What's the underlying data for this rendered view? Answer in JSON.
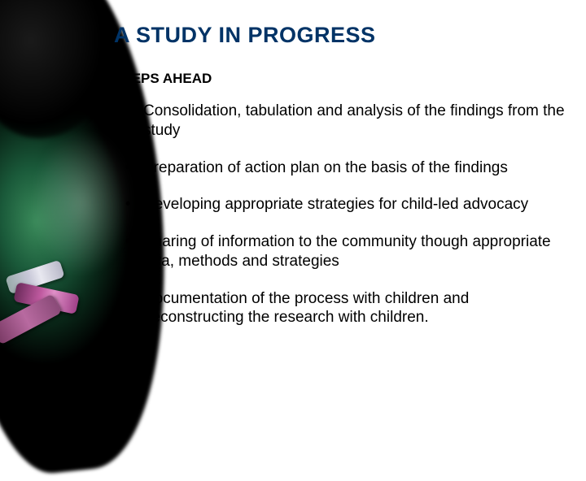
{
  "title": "A STUDY IN PROGRESS",
  "subtitle": "STEPS AHEAD",
  "bullets": [
    "Consolidation, tabulation and analysis of the findings from the study",
    "Preparation of action plan on the basis of the findings",
    "Developing appropriate strategies for child-led advocacy",
    "Sharing of information to the community though appropriate fora, methods and strategies",
    "Documentation of the process with children and deconstructing the research with children."
  ],
  "style": {
    "title_color": "#003366",
    "title_fontsize": 27,
    "subtitle_fontsize": 17,
    "bullet_fontsize": 19,
    "text_color": "#000000",
    "bg_color": "#ffffff"
  }
}
